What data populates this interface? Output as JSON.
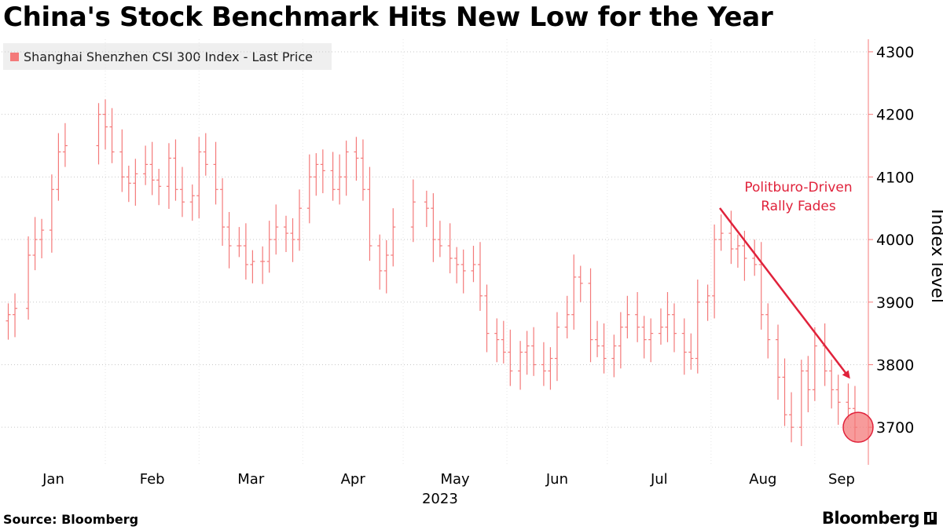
{
  "title": "China's Stock Benchmark Hits New Low for the Year",
  "source": "Source:  Bloomberg",
  "brand": "Bloomberg",
  "colors": {
    "series": "#f47a7a",
    "annotation": "#e0223b",
    "grid": "#c8c8c8",
    "axis": "#f47a7a"
  },
  "chart_data": {
    "type": "line",
    "style": "ohlc-bar",
    "series": [
      {
        "name": "Shanghai Shenzhen CSI 300 Index - Last Price"
      }
    ],
    "x_tick_labels": [
      "Jan",
      "Feb",
      "Mar",
      "Apr",
      "May",
      "Jun",
      "Jul",
      "Aug",
      "Sep"
    ],
    "x_year_label": "2023",
    "ylabel": "Index level",
    "ylim": [
      3640,
      4320
    ],
    "y_ticks": [
      3700,
      3800,
      3900,
      4000,
      4100,
      4200,
      4300
    ],
    "grid": "horizontal-dotted",
    "legend": "top-left",
    "y_axis_side": "right",
    "annotation": {
      "text_line1": "Politburo-Driven",
      "text_line2": "Rally Fades"
    },
    "points": [
      [
        "2023-01-03",
        3880
      ],
      [
        "2023-01-05",
        3890
      ],
      [
        "2023-01-09",
        3975
      ],
      [
        "2023-01-11",
        4000
      ],
      [
        "2023-01-13",
        4015
      ],
      [
        "2023-01-16",
        4080
      ],
      [
        "2023-01-18",
        4140
      ],
      [
        "2023-01-20",
        4150
      ],
      [
        "2023-01-30",
        4200
      ],
      [
        "2023-02-01",
        4180
      ],
      [
        "2023-02-03",
        4140
      ],
      [
        "2023-02-06",
        4100
      ],
      [
        "2023-02-08",
        4090
      ],
      [
        "2023-02-10",
        4105
      ],
      [
        "2023-02-13",
        4120
      ],
      [
        "2023-02-15",
        4095
      ],
      [
        "2023-02-17",
        4085
      ],
      [
        "2023-02-20",
        4130
      ],
      [
        "2023-02-22",
        4080
      ],
      [
        "2023-02-24",
        4060
      ],
      [
        "2023-02-27",
        4070
      ],
      [
        "2023-03-01",
        4140
      ],
      [
        "2023-03-03",
        4120
      ],
      [
        "2023-03-06",
        4080
      ],
      [
        "2023-03-08",
        4020
      ],
      [
        "2023-03-10",
        3990
      ],
      [
        "2023-03-13",
        3990
      ],
      [
        "2023-03-15",
        3960
      ],
      [
        "2023-03-17",
        3965
      ],
      [
        "2023-03-20",
        3965
      ],
      [
        "2023-03-22",
        4000
      ],
      [
        "2023-03-24",
        4020
      ],
      [
        "2023-03-27",
        4010
      ],
      [
        "2023-03-29",
        4000
      ],
      [
        "2023-03-31",
        4050
      ],
      [
        "2023-04-03",
        4100
      ],
      [
        "2023-04-05",
        4120
      ],
      [
        "2023-04-07",
        4110
      ],
      [
        "2023-04-10",
        4080
      ],
      [
        "2023-04-12",
        4100
      ],
      [
        "2023-04-14",
        4140
      ],
      [
        "2023-04-17",
        4130
      ],
      [
        "2023-04-19",
        4080
      ],
      [
        "2023-04-21",
        3990
      ],
      [
        "2023-04-24",
        3950
      ],
      [
        "2023-04-26",
        3975
      ],
      [
        "2023-04-28",
        4020
      ],
      [
        "2023-05-04",
        4060
      ],
      [
        "2023-05-08",
        4050
      ],
      [
        "2023-05-10",
        4000
      ],
      [
        "2023-05-12",
        3990
      ],
      [
        "2023-05-15",
        3970
      ],
      [
        "2023-05-17",
        3960
      ],
      [
        "2023-05-19",
        3950
      ],
      [
        "2023-05-22",
        3960
      ],
      [
        "2023-05-24",
        3910
      ],
      [
        "2023-05-26",
        3850
      ],
      [
        "2023-05-29",
        3840
      ],
      [
        "2023-05-31",
        3820
      ],
      [
        "2023-06-02",
        3790
      ],
      [
        "2023-06-05",
        3820
      ],
      [
        "2023-06-07",
        3830
      ],
      [
        "2023-06-09",
        3800
      ],
      [
        "2023-06-12",
        3790
      ],
      [
        "2023-06-14",
        3810
      ],
      [
        "2023-06-16",
        3860
      ],
      [
        "2023-06-19",
        3880
      ],
      [
        "2023-06-21",
        3940
      ],
      [
        "2023-06-23",
        3930
      ],
      [
        "2023-06-26",
        3840
      ],
      [
        "2023-06-28",
        3830
      ],
      [
        "2023-06-30",
        3810
      ],
      [
        "2023-07-03",
        3830
      ],
      [
        "2023-07-05",
        3860
      ],
      [
        "2023-07-07",
        3880
      ],
      [
        "2023-07-10",
        3860
      ],
      [
        "2023-07-12",
        3840
      ],
      [
        "2023-07-14",
        3850
      ],
      [
        "2023-07-17",
        3860
      ],
      [
        "2023-07-19",
        3880
      ],
      [
        "2023-07-21",
        3850
      ],
      [
        "2023-07-24",
        3820
      ],
      [
        "2023-07-26",
        3810
      ],
      [
        "2023-07-28",
        3900
      ],
      [
        "2023-07-31",
        3910
      ],
      [
        "2023-08-02",
        4000
      ],
      [
        "2023-08-04",
        4010
      ],
      [
        "2023-08-07",
        3985
      ],
      [
        "2023-08-09",
        3990
      ],
      [
        "2023-08-11",
        3970
      ],
      [
        "2023-08-14",
        3960
      ],
      [
        "2023-08-16",
        3880
      ],
      [
        "2023-08-18",
        3840
      ],
      [
        "2023-08-21",
        3780
      ],
      [
        "2023-08-23",
        3720
      ],
      [
        "2023-08-25",
        3700
      ],
      [
        "2023-08-28",
        3790
      ],
      [
        "2023-08-30",
        3760
      ],
      [
        "2023-09-01",
        3830
      ],
      [
        "2023-09-04",
        3790
      ],
      [
        "2023-09-06",
        3760
      ],
      [
        "2023-09-08",
        3740
      ],
      [
        "2023-09-11",
        3730
      ],
      [
        "2023-09-13",
        3700
      ]
    ],
    "highlight_point": [
      "2023-09-13",
      3700
    ]
  }
}
